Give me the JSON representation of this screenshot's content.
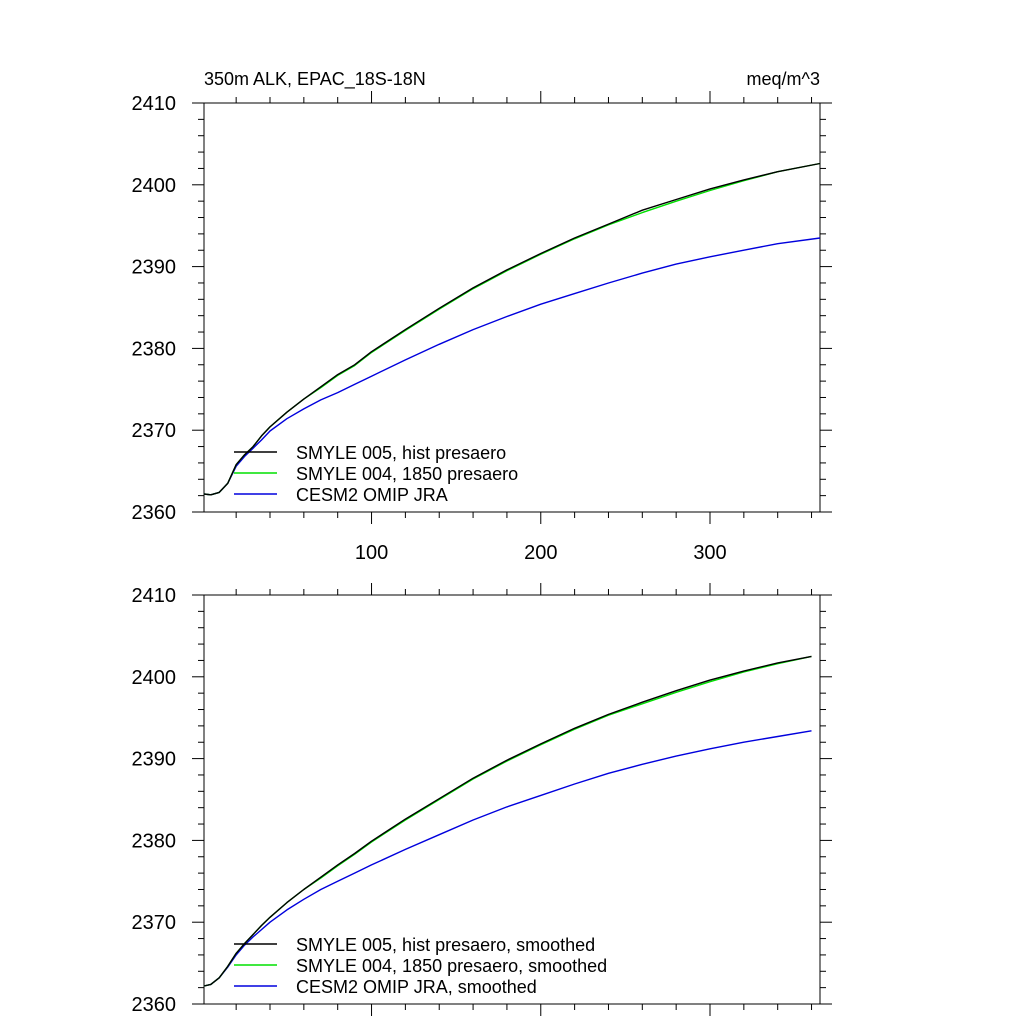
{
  "chart_data": [
    {
      "type": "line",
      "title_left": "350m ALK, EPAC_18S-18N",
      "title_right": "meq/m^3",
      "xlabel": "",
      "ylabel": "",
      "xlim": [
        1,
        365
      ],
      "ylim": [
        2360,
        2410
      ],
      "yticks": [
        2360,
        2370,
        2380,
        2390,
        2400,
        2410
      ],
      "xticks": [
        100,
        200,
        300
      ],
      "show_xtick_labels": true,
      "legend_position": "bottom-left",
      "x": [
        1,
        5,
        10,
        15,
        20,
        25,
        30,
        35,
        40,
        50,
        60,
        70,
        80,
        90,
        100,
        120,
        140,
        160,
        180,
        200,
        220,
        240,
        260,
        280,
        300,
        320,
        340,
        365
      ],
      "series": [
        {
          "name": "SMYLE 005, hist presaero",
          "color": "#000000",
          "values": [
            2362.2,
            2362.1,
            2362.4,
            2363.5,
            2365.8,
            2367.0,
            2368.0,
            2369.3,
            2370.4,
            2372.2,
            2373.8,
            2375.3,
            2376.8,
            2378.0,
            2379.6,
            2382.3,
            2384.9,
            2387.4,
            2389.6,
            2391.6,
            2393.5,
            2395.2,
            2396.9,
            2398.2,
            2399.5,
            2400.6,
            2401.6,
            2402.6
          ]
        },
        {
          "name": "SMYLE 004, 1850 presaero",
          "color": "#00e000",
          "values": [
            2362.2,
            2362.1,
            2362.4,
            2363.5,
            2365.8,
            2367.0,
            2368.0,
            2369.3,
            2370.4,
            2372.2,
            2373.8,
            2375.2,
            2376.7,
            2377.9,
            2379.5,
            2382.2,
            2384.8,
            2387.3,
            2389.5,
            2391.5,
            2393.4,
            2395.1,
            2396.6,
            2398.0,
            2399.3,
            2400.5,
            2401.6,
            2402.6
          ]
        },
        {
          "name": "CESM2 OMIP JRA",
          "color": "#0000dd",
          "values": [
            2362.2,
            2362.1,
            2362.4,
            2363.5,
            2365.6,
            2366.8,
            2367.8,
            2368.8,
            2369.9,
            2371.4,
            2372.6,
            2373.7,
            2374.6,
            2375.6,
            2376.6,
            2378.6,
            2380.5,
            2382.3,
            2383.9,
            2385.4,
            2386.7,
            2388.0,
            2389.2,
            2390.3,
            2391.2,
            2392.0,
            2392.8,
            2393.5
          ]
        }
      ]
    },
    {
      "type": "line",
      "title_left": "",
      "title_right": "",
      "xlabel": "",
      "ylabel": "",
      "xlim": [
        1,
        365
      ],
      "ylim": [
        2360,
        2410
      ],
      "yticks": [
        2360,
        2370,
        2380,
        2390,
        2400,
        2410
      ],
      "xticks": [
        100,
        200,
        300
      ],
      "show_xtick_labels": false,
      "legend_position": "bottom-left",
      "x": [
        1,
        5,
        10,
        15,
        20,
        25,
        30,
        35,
        40,
        50,
        60,
        70,
        80,
        90,
        100,
        120,
        140,
        160,
        180,
        200,
        220,
        240,
        260,
        280,
        300,
        320,
        340,
        360
      ],
      "series": [
        {
          "name": "SMYLE 005, hist presaero, smoothed",
          "color": "#000000",
          "values": [
            2362.2,
            2362.4,
            2363.2,
            2364.6,
            2366.2,
            2367.4,
            2368.5,
            2369.6,
            2370.6,
            2372.4,
            2374.0,
            2375.5,
            2377.0,
            2378.4,
            2379.9,
            2382.6,
            2385.1,
            2387.6,
            2389.8,
            2391.8,
            2393.7,
            2395.4,
            2396.9,
            2398.3,
            2399.6,
            2400.7,
            2401.7,
            2402.5
          ]
        },
        {
          "name": "SMYLE 004, 1850 presaero, smoothed",
          "color": "#00e000",
          "values": [
            2362.2,
            2362.4,
            2363.2,
            2364.6,
            2366.2,
            2367.4,
            2368.5,
            2369.6,
            2370.6,
            2372.4,
            2374.0,
            2375.4,
            2376.9,
            2378.3,
            2379.8,
            2382.5,
            2385.0,
            2387.5,
            2389.7,
            2391.7,
            2393.6,
            2395.3,
            2396.7,
            2398.1,
            2399.4,
            2400.6,
            2401.6,
            2402.5
          ]
        },
        {
          "name": "CESM2 OMIP JRA, smoothed",
          "color": "#0000dd",
          "values": [
            2362.2,
            2362.4,
            2363.2,
            2364.5,
            2366.0,
            2367.2,
            2368.2,
            2369.1,
            2370.0,
            2371.5,
            2372.8,
            2374.0,
            2375.0,
            2376.0,
            2377.0,
            2378.9,
            2380.7,
            2382.5,
            2384.1,
            2385.5,
            2386.9,
            2388.2,
            2389.3,
            2390.3,
            2391.2,
            2392.0,
            2392.7,
            2393.4
          ]
        }
      ]
    }
  ]
}
